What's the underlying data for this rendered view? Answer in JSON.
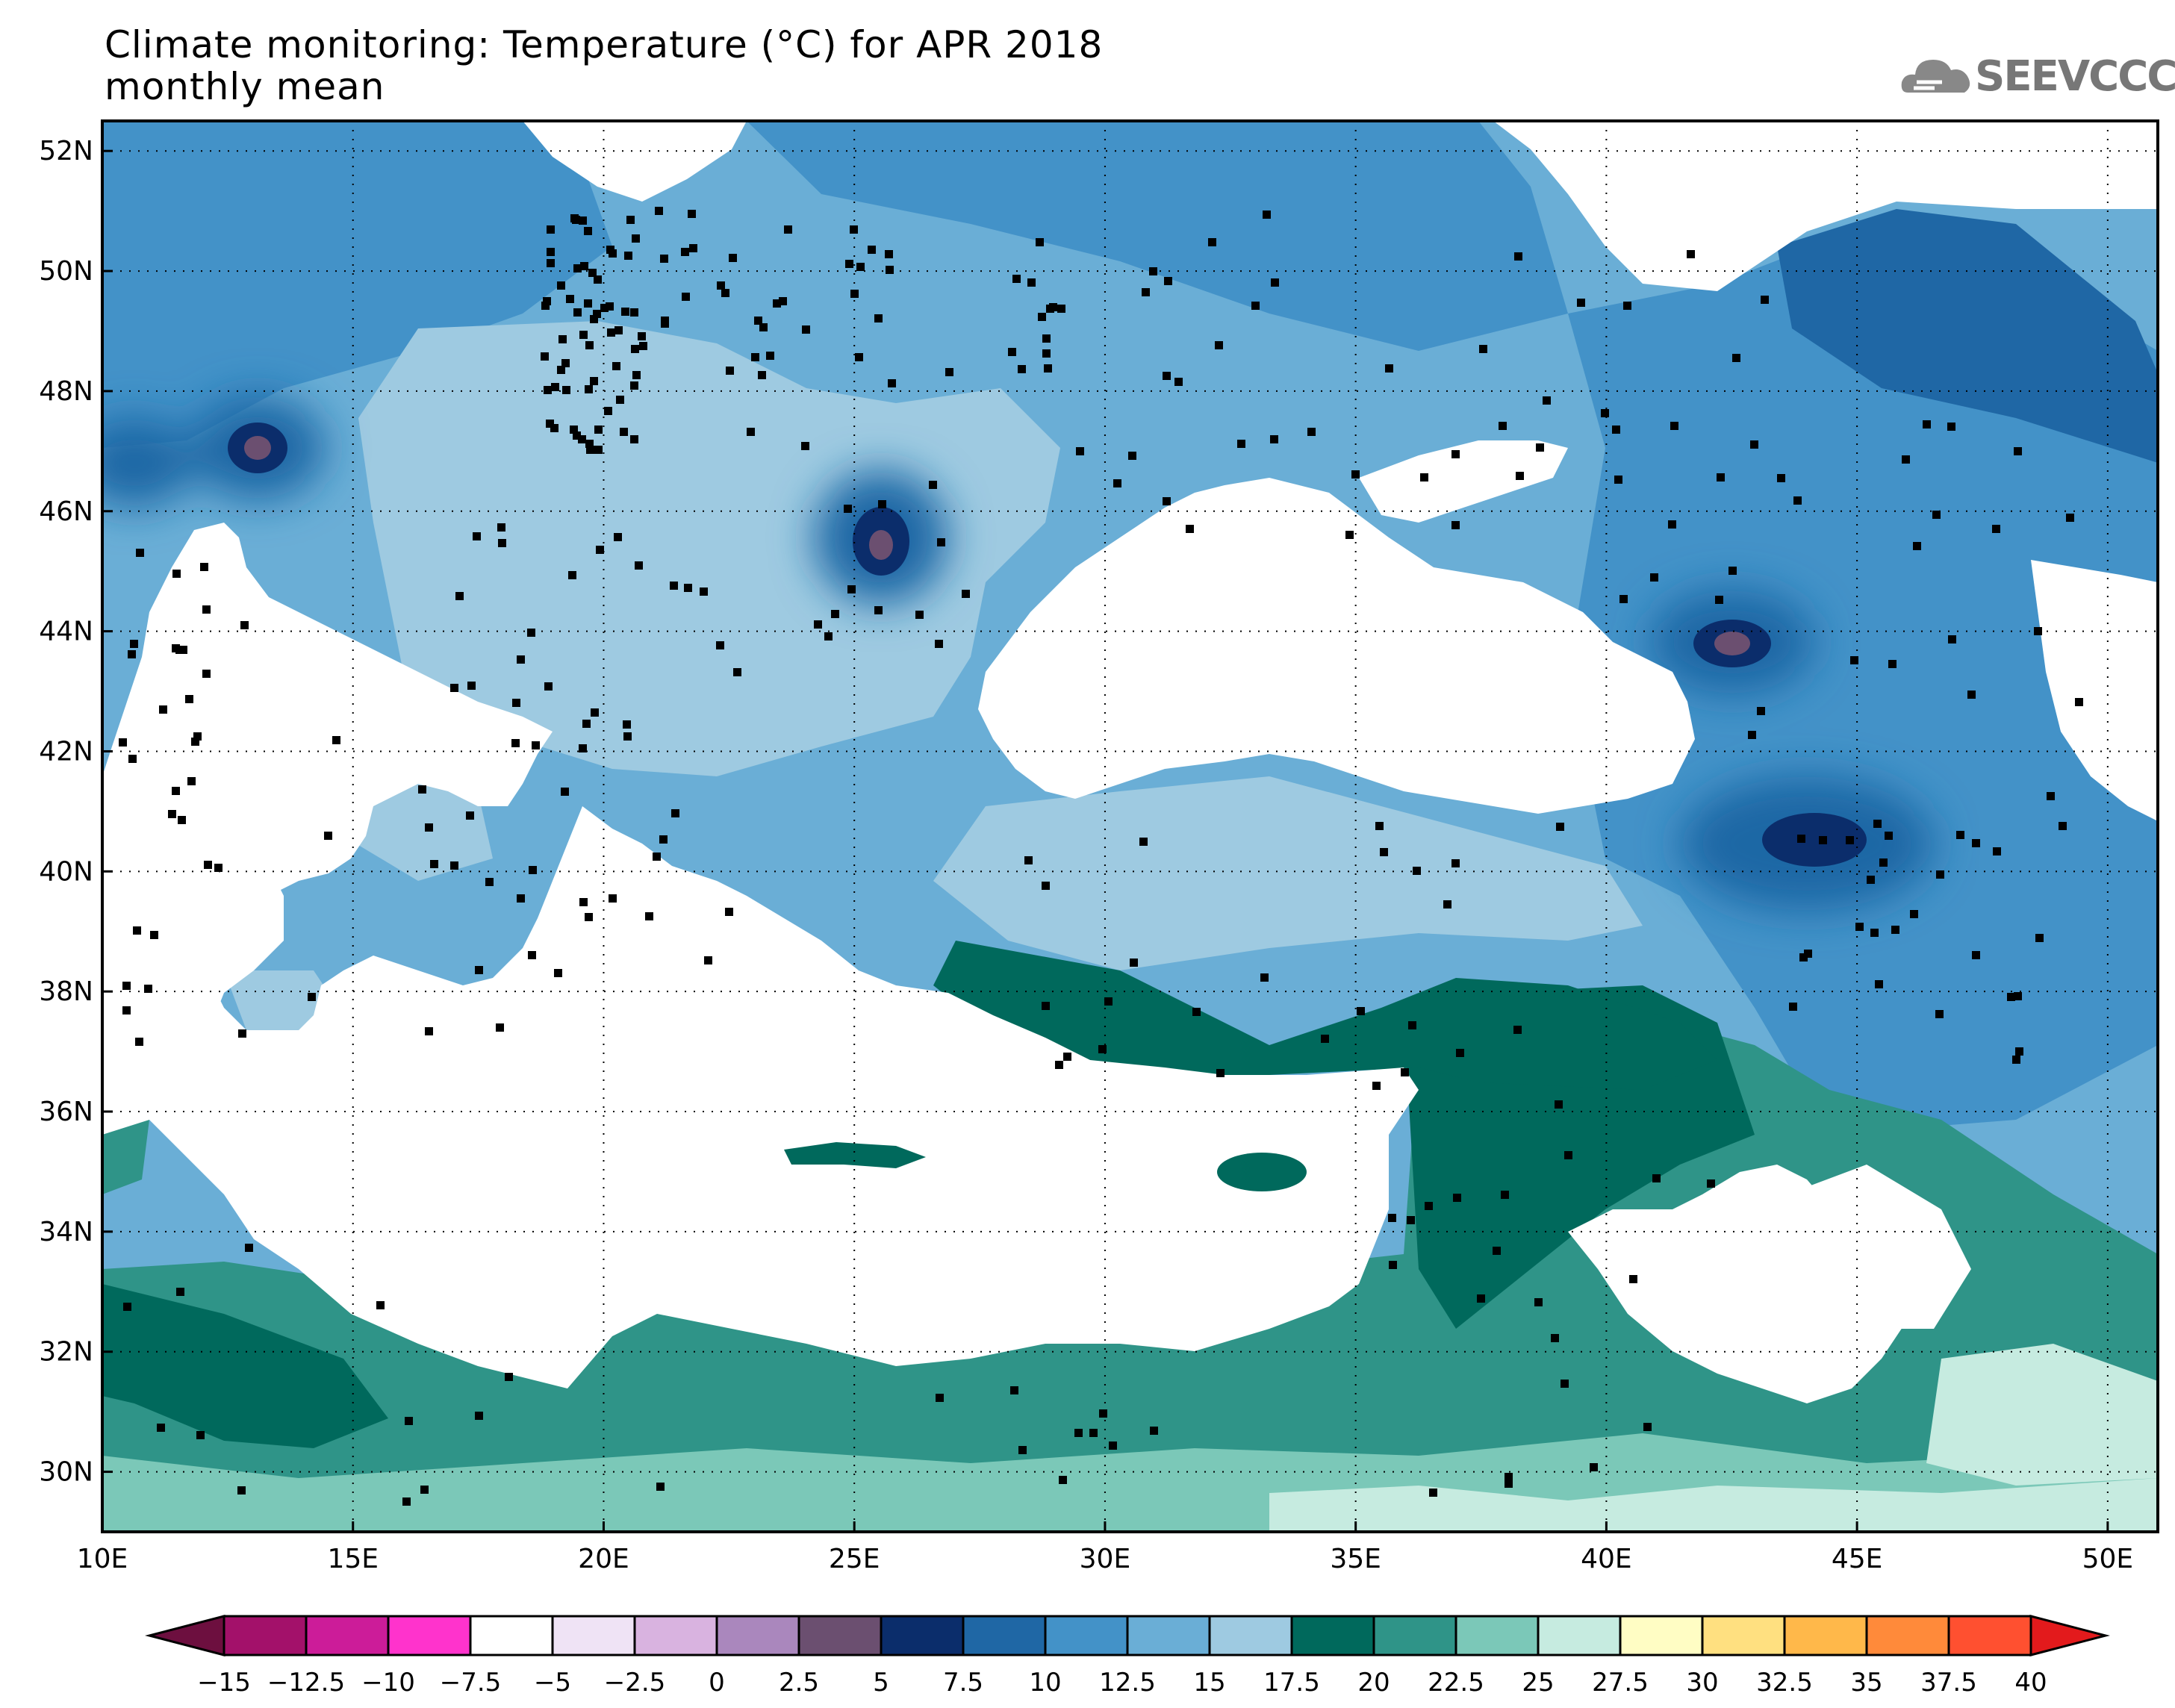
{
  "header": {
    "title_line1": "Climate monitoring: Temperature (°C) for APR 2018",
    "title_line2": "monthly mean",
    "logo_text": "SEEVCCC"
  },
  "map": {
    "lon_range": [
      10,
      51
    ],
    "lat_range": [
      29,
      52.5
    ],
    "lon_ticks": [
      "10E",
      "15E",
      "20E",
      "25E",
      "30E",
      "35E",
      "40E",
      "45E",
      "50E"
    ],
    "lat_ticks": [
      "52N",
      "50N",
      "48N",
      "46N",
      "44N",
      "42N",
      "40N",
      "38N",
      "36N",
      "34N",
      "32N",
      "30N"
    ],
    "variable": "Temperature (°C)",
    "period": "APR 2018",
    "statistic": "monthly mean"
  },
  "colorbar": {
    "labels": [
      "−15",
      "−12.5",
      "−10",
      "−7.5",
      "−5",
      "−2.5",
      "0",
      "2.5",
      "5",
      "7.5",
      "10",
      "12.5",
      "15",
      "17.5",
      "20",
      "22.5",
      "25",
      "27.5",
      "30",
      "32.5",
      "35",
      "37.5",
      "40"
    ],
    "colors": [
      "#6d0f3f",
      "#a3116a",
      "#cc1c99",
      "#ff33cc",
      "#ffffff",
      "#efe3f5",
      "#d9b3e0",
      "#aa87bd",
      "#6b4f70",
      "#0b2d6b",
      "#1f67a5",
      "#4392c8",
      "#6aaed6",
      "#9ecae1",
      "#00695c",
      "#2f9488",
      "#7bc8b8",
      "#c6ebe0",
      "#fffdc4",
      "#ffe080",
      "#ffb84a",
      "#ff8a3a",
      "#ff5030",
      "#e31a1c"
    ]
  }
}
